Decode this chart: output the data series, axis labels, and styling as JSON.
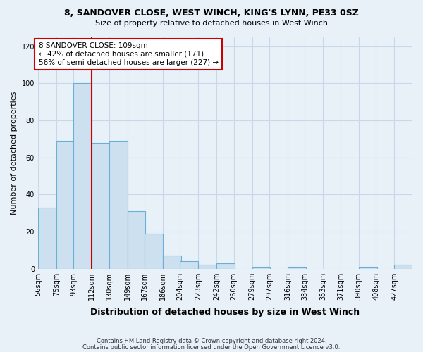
{
  "title": "8, SANDOVER CLOSE, WEST WINCH, KING'S LYNN, PE33 0SZ",
  "subtitle": "Size of property relative to detached houses in West Winch",
  "xlabel": "Distribution of detached houses by size in West Winch",
  "ylabel": "Number of detached properties",
  "bar_color": "#cce0f0",
  "bar_edge_color": "#6aafd6",
  "background_color": "#e8f0f8",
  "grid_color": "#c8d8e8",
  "bin_edges": [
    56,
    75,
    93,
    112,
    130,
    149,
    167,
    186,
    204,
    223,
    242,
    260,
    279,
    297,
    316,
    334,
    353,
    371,
    390,
    408,
    427
  ],
  "bin_labels": [
    "56sqm",
    "75sqm",
    "93sqm",
    "112sqm",
    "130sqm",
    "149sqm",
    "167sqm",
    "186sqm",
    "204sqm",
    "223sqm",
    "242sqm",
    "260sqm",
    "279sqm",
    "297sqm",
    "316sqm",
    "334sqm",
    "353sqm",
    "371sqm",
    "390sqm",
    "408sqm",
    "427sqm"
  ],
  "counts": [
    33,
    69,
    100,
    68,
    69,
    31,
    19,
    7,
    4,
    2,
    3,
    0,
    1,
    0,
    1,
    0,
    0,
    0,
    1,
    0,
    2
  ],
  "property_line_x": 112,
  "vline_color": "#cc0000",
  "annotation_text": "8 SANDOVER CLOSE: 109sqm\n← 42% of detached houses are smaller (171)\n56% of semi-detached houses are larger (227) →",
  "annotation_box_color": "white",
  "annotation_box_edge": "#cc0000",
  "ylim": [
    0,
    125
  ],
  "yticks": [
    0,
    20,
    40,
    60,
    80,
    100,
    120
  ],
  "footer1": "Contains HM Land Registry data © Crown copyright and database right 2024.",
  "footer2": "Contains public sector information licensed under the Open Government Licence v3.0."
}
